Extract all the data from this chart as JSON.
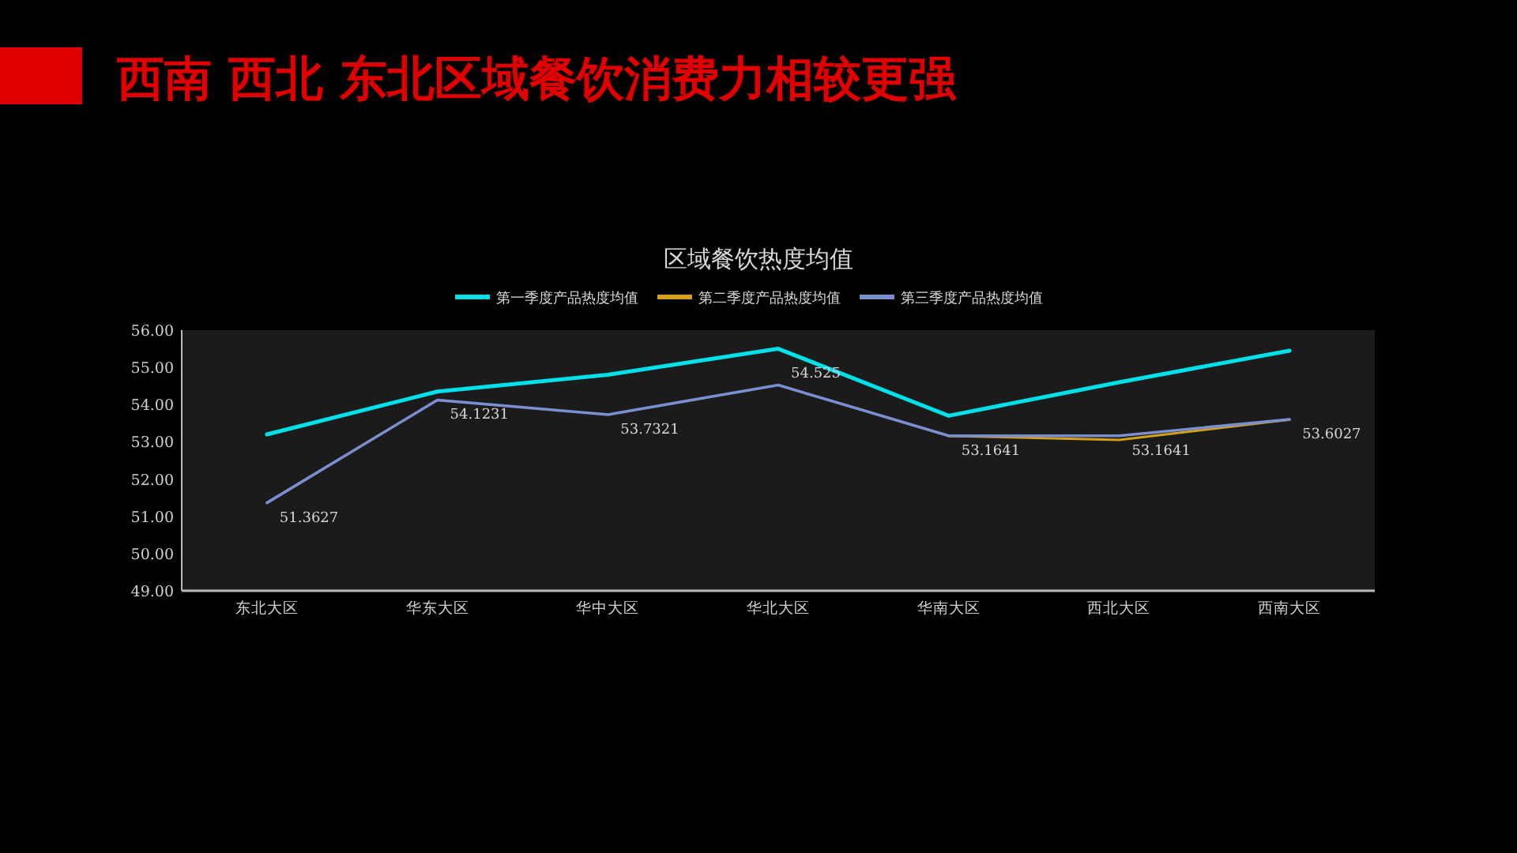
{
  "chart_data": {
    "type": "line",
    "title": "西南  西北  东北区域餐饮消费力相较更强",
    "subtitle": "区域餐饮热度均值",
    "categories": [
      "东北大区",
      "华东大区",
      "华中大区",
      "华北大区",
      "华南大区",
      "西北大区",
      "西南大区"
    ],
    "series": [
      {
        "name": "第一季度产品热度均值",
        "color": "#00e0e8",
        "values": [
          53.2,
          54.35,
          54.8,
          55.5,
          53.7,
          54.6,
          55.45
        ]
      },
      {
        "name": "第二季度产品热度均值",
        "color": "#d4a017",
        "values": [
          null,
          null,
          null,
          null,
          53.16,
          53.05,
          53.6
        ]
      },
      {
        "name": "第三季度产品热度均值",
        "color": "#7b8fd0",
        "values": [
          51.3627,
          54.1231,
          53.7321,
          54.525,
          53.1641,
          53.1641,
          53.6027
        ],
        "value_labels": [
          "51.3627",
          "54.1231",
          "53.7321",
          "54.525",
          "53.1641",
          "53.1641",
          "53.6027"
        ]
      }
    ],
    "ylim": [
      49,
      56
    ],
    "yticks": [
      {
        "value": 49,
        "label": "49.00"
      },
      {
        "value": 50,
        "label": "50.00"
      },
      {
        "value": 51,
        "label": "51.00"
      },
      {
        "value": 52,
        "label": "52.00"
      },
      {
        "value": 53,
        "label": "53.00"
      },
      {
        "value": 54,
        "label": "54.00"
      },
      {
        "value": 55,
        "label": "55.00"
      },
      {
        "value": 56,
        "label": "56.00"
      }
    ],
    "legend": "top",
    "grid": false,
    "marker": "none",
    "line_style": "solid"
  }
}
